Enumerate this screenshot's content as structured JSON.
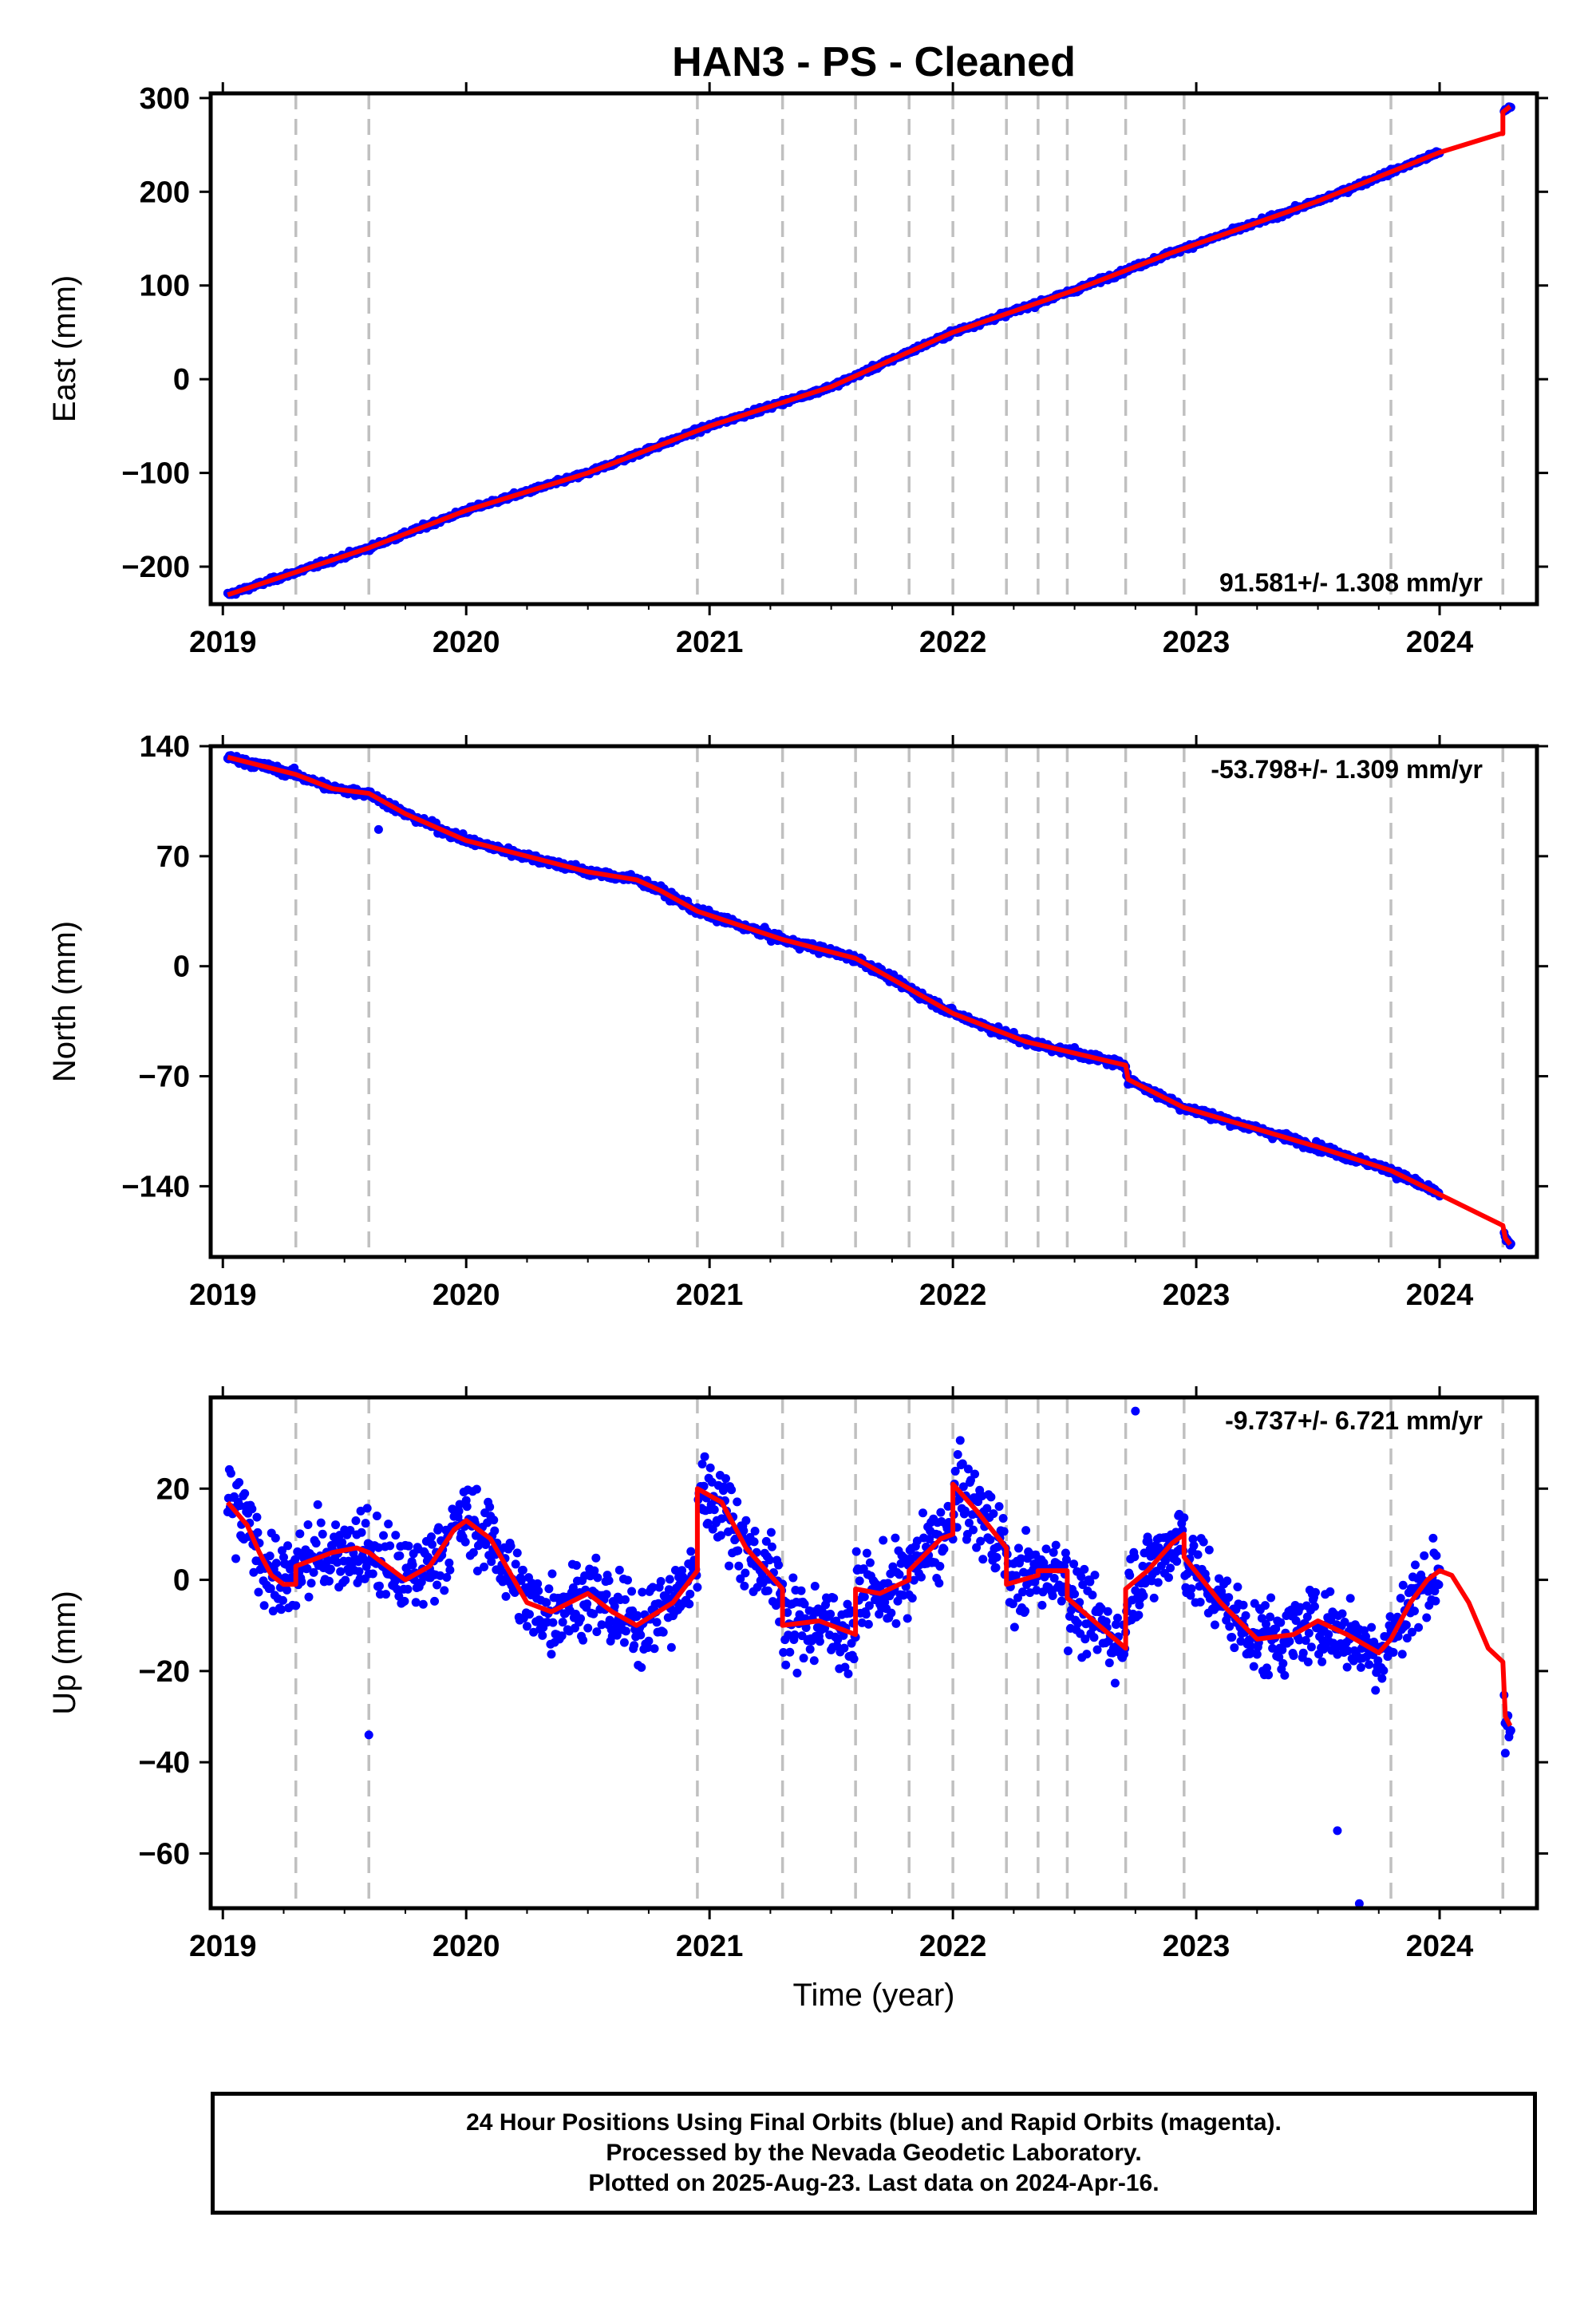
{
  "title": "HAN3  - PS - Cleaned",
  "colors": {
    "final_orbits": "#0000ff",
    "model": "#ff0000",
    "breaks": "#c0c0c0"
  },
  "chart_data": [
    {
      "type": "scatter",
      "component": "east",
      "ylabel": "East (mm)",
      "xlabel": "",
      "xlim": [
        2018.95,
        2024.4
      ],
      "ylim": [
        -240,
        305
      ],
      "xticks": [
        2019,
        2020,
        2021,
        2022,
        2023,
        2024
      ],
      "yticks": [
        300,
        200,
        100,
        0,
        -100,
        -200
      ],
      "ytick_labels": [
        "300",
        "200",
        "100",
        "0",
        "−100",
        "−200"
      ],
      "rate": "91.581+/- 1.308 mm/yr",
      "rate_position": "bottom-right",
      "dashed_breaks": [
        2019.3,
        2019.6,
        2020.95,
        2021.3,
        2021.6,
        2021.82,
        2022.0,
        2022.22,
        2022.35,
        2022.47,
        2022.71,
        2022.95,
        2023.8,
        2024.26
      ],
      "model_line": [
        [
          2019.02,
          -230
        ],
        [
          2019.6,
          -180
        ],
        [
          2019.8,
          -160
        ],
        [
          2020.0,
          -140
        ],
        [
          2020.5,
          -100
        ],
        [
          2021.0,
          -50
        ],
        [
          2021.5,
          -8
        ],
        [
          2022.0,
          50
        ],
        [
          2022.5,
          95
        ],
        [
          2022.9,
          135
        ],
        [
          2023.5,
          190
        ],
        [
          2024.0,
          242
        ],
        [
          2024.25,
          262
        ],
        [
          2024.26,
          262
        ],
        [
          2024.26,
          285
        ],
        [
          2024.29,
          291
        ]
      ],
      "points_summary": "daily positions 2019.02–2024.0 following the trend with ±4 mm scatter; last points 2024.26–2024.29 near 285–292"
    },
    {
      "type": "scatter",
      "component": "north",
      "ylabel": "North (mm)",
      "xlabel": "",
      "xlim": [
        2018.95,
        2024.4
      ],
      "ylim": [
        -185,
        140
      ],
      "xticks": [
        2019,
        2020,
        2021,
        2022,
        2023,
        2024
      ],
      "yticks": [
        140,
        70,
        0,
        -70,
        -140
      ],
      "ytick_labels": [
        "140",
        "70",
        "0",
        "−70",
        "−140"
      ],
      "rate": "-53.798+/- 1.309 mm/yr",
      "rate_position": "top-right",
      "dashed_breaks": [
        2019.3,
        2019.6,
        2020.95,
        2021.3,
        2021.6,
        2021.82,
        2022.0,
        2022.22,
        2022.35,
        2022.47,
        2022.71,
        2022.95,
        2023.8,
        2024.26
      ],
      "model_line": [
        [
          2019.02,
          133
        ],
        [
          2019.3,
          122
        ],
        [
          2019.45,
          113
        ],
        [
          2019.6,
          110
        ],
        [
          2019.75,
          97
        ],
        [
          2020.0,
          80
        ],
        [
          2020.5,
          60
        ],
        [
          2020.7,
          55
        ],
        [
          2020.8,
          48
        ],
        [
          2020.95,
          35
        ],
        [
          2021.3,
          17
        ],
        [
          2021.6,
          5
        ],
        [
          2022.0,
          -30
        ],
        [
          2022.3,
          -48
        ],
        [
          2022.71,
          -63
        ],
        [
          2022.72,
          -72
        ],
        [
          2022.95,
          -90
        ],
        [
          2023.5,
          -115
        ],
        [
          2023.8,
          -130
        ],
        [
          2024.26,
          -165
        ],
        [
          2024.27,
          -173
        ],
        [
          2024.29,
          -177
        ]
      ],
      "outliers": [
        [
          2019.64,
          87
        ]
      ]
    },
    {
      "type": "scatter",
      "component": "up",
      "ylabel": "Up (mm)",
      "xlabel": "Time (year)",
      "xlim": [
        2018.95,
        2024.4
      ],
      "ylim": [
        -72,
        40
      ],
      "xticks": [
        2019,
        2020,
        2021,
        2022,
        2023,
        2024
      ],
      "yticks": [
        20,
        0,
        -20,
        -40,
        -60
      ],
      "ytick_labels": [
        "20",
        "0",
        "−20",
        "−40",
        "−60"
      ],
      "rate": "-9.737+/- 6.721 mm/yr",
      "rate_position": "top-right",
      "dashed_breaks": [
        2019.3,
        2019.6,
        2020.95,
        2021.3,
        2021.6,
        2021.82,
        2022.0,
        2022.22,
        2022.35,
        2022.47,
        2022.71,
        2022.95,
        2023.8,
        2024.26
      ],
      "model_line": [
        [
          2019.02,
          17
        ],
        [
          2019.1,
          12
        ],
        [
          2019.15,
          6
        ],
        [
          2019.2,
          1
        ],
        [
          2019.25,
          -1
        ],
        [
          2019.3,
          -1
        ],
        [
          2019.3,
          3
        ],
        [
          2019.45,
          6
        ],
        [
          2019.55,
          7
        ],
        [
          2019.6,
          6
        ],
        [
          2019.75,
          0
        ],
        [
          2019.85,
          3
        ],
        [
          2019.95,
          11
        ],
        [
          2020.0,
          13
        ],
        [
          2020.1,
          9
        ],
        [
          2020.25,
          -5
        ],
        [
          2020.35,
          -7
        ],
        [
          2020.5,
          -3
        ],
        [
          2020.6,
          -7
        ],
        [
          2020.7,
          -10
        ],
        [
          2020.85,
          -5
        ],
        [
          2020.95,
          2
        ],
        [
          2020.95,
          20
        ],
        [
          2021.05,
          17
        ],
        [
          2021.15,
          7
        ],
        [
          2021.25,
          1
        ],
        [
          2021.3,
          -2
        ],
        [
          2021.3,
          -10
        ],
        [
          2021.45,
          -9
        ],
        [
          2021.6,
          -12
        ],
        [
          2021.6,
          -2
        ],
        [
          2021.7,
          -3
        ],
        [
          2021.82,
          0
        ],
        [
          2021.82,
          2
        ],
        [
          2021.95,
          9
        ],
        [
          2022.0,
          10
        ],
        [
          2022.0,
          21
        ],
        [
          2022.1,
          15
        ],
        [
          2022.22,
          7
        ],
        [
          2022.22,
          -1
        ],
        [
          2022.35,
          1
        ],
        [
          2022.35,
          2
        ],
        [
          2022.47,
          2
        ],
        [
          2022.47,
          -4
        ],
        [
          2022.6,
          -10
        ],
        [
          2022.71,
          -15
        ],
        [
          2022.71,
          -2
        ],
        [
          2022.8,
          2
        ],
        [
          2022.9,
          8
        ],
        [
          2022.95,
          10
        ],
        [
          2022.95,
          5
        ],
        [
          2023.1,
          -5
        ],
        [
          2023.25,
          -13
        ],
        [
          2023.4,
          -12
        ],
        [
          2023.5,
          -9
        ],
        [
          2023.62,
          -12
        ],
        [
          2023.75,
          -16
        ],
        [
          2023.8,
          -13
        ],
        [
          2023.88,
          -5
        ],
        [
          2023.95,
          0
        ],
        [
          2024.0,
          2
        ],
        [
          2024.05,
          1
        ],
        [
          2024.12,
          -5
        ],
        [
          2024.2,
          -15
        ],
        [
          2024.26,
          -18
        ],
        [
          2024.27,
          -30
        ],
        [
          2024.29,
          -32
        ]
      ],
      "outliers": [
        [
          2019.6,
          -34
        ],
        [
          2022.75,
          37
        ],
        [
          2023.58,
          -55
        ],
        [
          2023.67,
          -71
        ],
        [
          2024.27,
          -38
        ]
      ]
    }
  ],
  "footer": {
    "line1": "24 Hour Positions Using Final Orbits (blue) and Rapid Orbits (magenta).",
    "line2": "Processed by the Nevada Geodetic Laboratory.",
    "line3": "Plotted on 2025-Aug-23. Last data on 2024-Apr-16."
  }
}
